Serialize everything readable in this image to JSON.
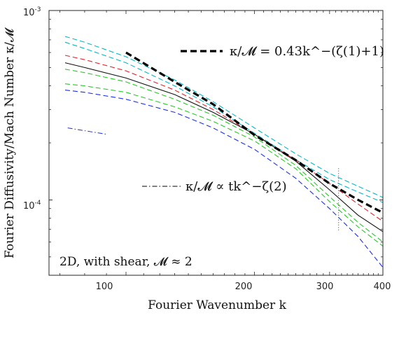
{
  "chart_data": {
    "type": "line",
    "xscale": "log",
    "yscale": "log",
    "xlim": [
      66,
      400
    ],
    "ylim": [
      4e-05,
      0.001
    ],
    "xticks": [
      "100",
      "200",
      "300",
      "400"
    ],
    "yticks": [
      {
        "base": "10",
        "exp": "-3"
      },
      {
        "base": "10",
        "exp": "-4"
      }
    ],
    "xlabel": "Fourier Wavenumber k",
    "ylabel": "Fourier Diffusivity/Mach Number κ/𝓜",
    "annotation": "2D, with shear, 𝓜 ≈ 2",
    "legend": [
      {
        "label": "κ/𝓜 = 0.43k^−(ζ(1)+1)",
        "style": "thick-dashed-black"
      },
      {
        "label": "κ/𝓜 ∝ tk^−ζ(2)",
        "style": "dash-dot-black"
      }
    ],
    "reference_lines": [
      {
        "name": "",
        "style": "thick-dashed-black",
        "x": [
          100,
          130,
          160,
          200,
          250,
          300,
          350,
          400
        ],
        "y": [
          0.0006,
          0.00042,
          0.00032,
          0.00022,
          0.000162,
          0.000122,
          0.0001,
          8.55e-05
        ]
      },
      {
        "name": "",
        "style": "dash-dot-black",
        "x": [
          73,
          90
        ],
        "y": [
          0.00024,
          0.000222
        ]
      }
    ],
    "vertical_marker": {
      "x": 315
    },
    "series": [
      {
        "color": "#00b8c8",
        "dash": "7,4",
        "x": [
          72,
          80,
          100,
          130,
          160,
          200,
          250,
          300,
          350,
          400
        ],
        "y": [
          0.00073,
          0.00068,
          0.00057,
          0.00043,
          0.00033,
          0.00024,
          0.000175,
          0.000138,
          0.000118,
          0.000103
        ]
      },
      {
        "color": "#00b8c8",
        "dash": "7,4",
        "x": [
          72,
          80,
          100,
          130,
          160,
          200,
          250,
          300,
          350,
          400
        ],
        "y": [
          0.00068,
          0.00063,
          0.00053,
          0.0004,
          0.00031,
          0.000225,
          0.000163,
          0.000128,
          0.00011,
          9.7e-05
        ]
      },
      {
        "color": "#e8202a",
        "dash": "7,4",
        "x": [
          72,
          80,
          100,
          130,
          160,
          200,
          250,
          300,
          350,
          400
        ],
        "y": [
          0.00058,
          0.00055,
          0.00048,
          0.00038,
          0.0003,
          0.000222,
          0.000162,
          0.000122,
          9.5e-05,
          7.7e-05
        ]
      },
      {
        "color": "#111111",
        "dash": "",
        "x": [
          72,
          80,
          100,
          130,
          160,
          200,
          250,
          300,
          350,
          400
        ],
        "y": [
          0.00053,
          0.0005,
          0.00044,
          0.00036,
          0.00029,
          0.000222,
          0.00016,
          0.000113,
          8.3e-05,
          6.8e-05
        ]
      },
      {
        "color": "#22cc22",
        "dash": "7,4",
        "x": [
          72,
          80,
          100,
          130,
          160,
          200,
          250,
          300,
          350,
          400
        ],
        "y": [
          0.00049,
          0.00047,
          0.00042,
          0.00034,
          0.00028,
          0.000215,
          0.000152,
          0.000104,
          7.6e-05,
          6e-05
        ]
      },
      {
        "color": "#22cc22",
        "dash": "7,4",
        "x": [
          72,
          80,
          100,
          130,
          160,
          200,
          250,
          300,
          350,
          400
        ],
        "y": [
          0.00041,
          0.0004,
          0.00037,
          0.00031,
          0.00026,
          0.000205,
          0.000146,
          9.8e-05,
          7.2e-05,
          5.7e-05
        ]
      },
      {
        "color": "#1a2ee8",
        "dash": "7,4",
        "x": [
          72,
          80,
          100,
          130,
          160,
          200,
          250,
          300,
          350,
          400
        ],
        "y": [
          0.00038,
          0.00037,
          0.00034,
          0.00029,
          0.00024,
          0.000185,
          0.00013,
          9e-05,
          6.4e-05,
          4.4e-05
        ]
      }
    ]
  }
}
